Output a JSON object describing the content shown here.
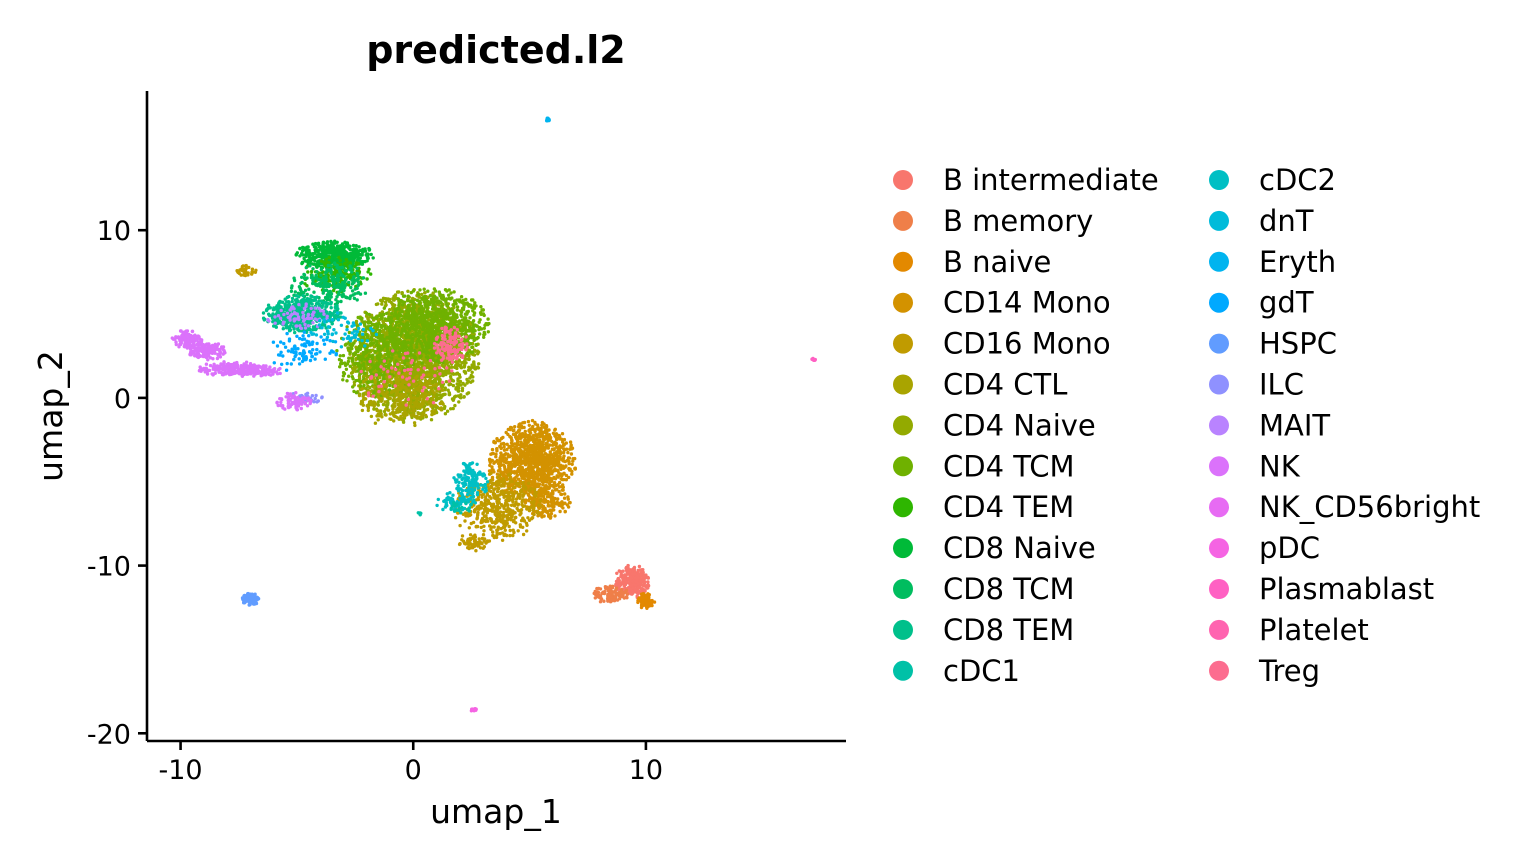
{
  "chart_data": {
    "type": "scatter",
    "title": "predicted.l2",
    "xlabel": "umap_1",
    "ylabel": "umap_2",
    "xlim": [
      -11.4,
      18.6
    ],
    "ylim": [
      -20.4,
      18.3
    ],
    "xticks": [
      -10,
      0,
      10
    ],
    "yticks": [
      -20,
      -10,
      0,
      10
    ],
    "xtick_labels": [
      "-10",
      "0",
      "10"
    ],
    "ytick_labels": [
      "-20",
      "-10",
      "0",
      "10"
    ],
    "grid": false,
    "legend_position": "right",
    "legend_columns": 2,
    "series": [
      {
        "name": "B intermediate",
        "color": "#F8766D"
      },
      {
        "name": "B memory",
        "color": "#EF7F49"
      },
      {
        "name": "B naive",
        "color": "#E38900"
      },
      {
        "name": "CD14 Mono",
        "color": "#D39200"
      },
      {
        "name": "CD16 Mono",
        "color": "#C09B00"
      },
      {
        "name": "CD4 CTL",
        "color": "#A9A400"
      },
      {
        "name": "CD4 Naive",
        "color": "#93AA00"
      },
      {
        "name": "CD4 TCM",
        "color": "#6FB100"
      },
      {
        "name": "CD4 TEM",
        "color": "#2EB600"
      },
      {
        "name": "CD8 Naive",
        "color": "#00BA38"
      },
      {
        "name": "CD8 TCM",
        "color": "#00BD5F"
      },
      {
        "name": "CD8 TEM",
        "color": "#00C08B"
      },
      {
        "name": "cDC1",
        "color": "#00C1A7"
      },
      {
        "name": "cDC2",
        "color": "#00BFC4"
      },
      {
        "name": "dnT",
        "color": "#00BBDA"
      },
      {
        "name": "Eryth",
        "color": "#00B4EF"
      },
      {
        "name": "gdT",
        "color": "#00A9FF"
      },
      {
        "name": "HSPC",
        "color": "#619CFF"
      },
      {
        "name": "ILC",
        "color": "#8F91FF"
      },
      {
        "name": "MAIT",
        "color": "#B983FF"
      },
      {
        "name": "NK",
        "color": "#DB72FB"
      },
      {
        "name": "NK_CD56bright",
        "color": "#E76BF3"
      },
      {
        "name": "pDC",
        "color": "#F564E3"
      },
      {
        "name": "Plasmablast",
        "color": "#FF61C3"
      },
      {
        "name": "Platelet",
        "color": "#FF64B0"
      },
      {
        "name": "Treg",
        "color": "#FC6D8F"
      }
    ],
    "clusters": [
      {
        "series": "CD4 Naive",
        "cx": 0.0,
        "cy": 2.5,
        "sx": 1.5,
        "sy": 2.1,
        "n": 2200
      },
      {
        "series": "CD4 TCM",
        "cx": 0.8,
        "cy": 4.3,
        "sx": 1.3,
        "sy": 1.2,
        "n": 900
      },
      {
        "series": "CD4 TCM",
        "cx": -1.6,
        "cy": 2.5,
        "sx": 0.9,
        "sy": 1.4,
        "n": 400
      },
      {
        "series": "CD4 CTL",
        "cx": -0.5,
        "cy": 0.0,
        "sx": 1.0,
        "sy": 1.0,
        "n": 350
      },
      {
        "series": "Treg",
        "cx": 1.6,
        "cy": 3.2,
        "sx": 0.4,
        "sy": 0.6,
        "n": 120
      },
      {
        "series": "Treg",
        "cx": -0.2,
        "cy": 1.2,
        "sx": 1.2,
        "sy": 1.0,
        "n": 60
      },
      {
        "series": "CD8 Naive",
        "cx": -3.4,
        "cy": 8.5,
        "sx": 0.9,
        "sy": 0.45,
        "n": 450
      },
      {
        "series": "CD4 TEM",
        "cx": -3.3,
        "cy": 7.3,
        "sx": 0.8,
        "sy": 0.6,
        "n": 180
      },
      {
        "series": "CD8 TCM",
        "cx": -3.6,
        "cy": 6.7,
        "sx": 0.9,
        "sy": 0.8,
        "n": 220
      },
      {
        "series": "CD8 TEM",
        "cx": -4.8,
        "cy": 5.0,
        "sx": 0.9,
        "sy": 0.6,
        "n": 500
      },
      {
        "series": "MAIT",
        "cx": -5.0,
        "cy": 4.7,
        "sx": 0.7,
        "sy": 0.5,
        "n": 70
      },
      {
        "series": "gdT",
        "cx": -4.7,
        "cy": 2.8,
        "sx": 0.8,
        "sy": 0.7,
        "n": 90
      },
      {
        "series": "dnT",
        "cx": -3.0,
        "cy": 4.0,
        "sx": 0.8,
        "sy": 0.6,
        "n": 60
      },
      {
        "series": "ILC",
        "cx": -4.6,
        "cy": 0.0,
        "sx": 0.4,
        "sy": 0.2,
        "n": 40
      },
      {
        "series": "NK",
        "cx": -5.1,
        "cy": -0.2,
        "sx": 0.45,
        "sy": 0.3,
        "n": 70
      },
      {
        "series": "NK",
        "cx": -9.7,
        "cy": 3.5,
        "sx": 0.35,
        "sy": 0.3,
        "n": 120
      },
      {
        "series": "NK",
        "cx": -8.9,
        "cy": 2.8,
        "sx": 0.45,
        "sy": 0.3,
        "n": 140
      },
      {
        "series": "NK",
        "cx": -7.8,
        "cy": 1.7,
        "sx": 0.8,
        "sy": 0.25,
        "n": 220
      },
      {
        "series": "NK",
        "cx": -6.4,
        "cy": 1.6,
        "sx": 0.4,
        "sy": 0.2,
        "n": 80
      },
      {
        "series": "CD16 Mono",
        "cx": -7.2,
        "cy": 7.6,
        "sx": 0.25,
        "sy": 0.2,
        "n": 40
      },
      {
        "series": "CD14 Mono",
        "cx": 5.1,
        "cy": -3.8,
        "sx": 1.0,
        "sy": 1.3,
        "n": 1100
      },
      {
        "series": "CD14 Mono",
        "cx": 5.8,
        "cy": -6.3,
        "sx": 0.5,
        "sy": 0.5,
        "n": 150
      },
      {
        "series": "CD16 Mono",
        "cx": 3.6,
        "cy": -6.5,
        "sx": 1.0,
        "sy": 1.1,
        "n": 450
      },
      {
        "series": "CD16 Mono",
        "cx": 2.6,
        "cy": -8.6,
        "sx": 0.35,
        "sy": 0.3,
        "n": 60
      },
      {
        "series": "cDC2",
        "cx": 2.5,
        "cy": -4.9,
        "sx": 0.4,
        "sy": 0.6,
        "n": 130
      },
      {
        "series": "cDC2",
        "cx": 1.8,
        "cy": -6.2,
        "sx": 0.5,
        "sy": 0.3,
        "n": 70
      },
      {
        "series": "cDC1",
        "cx": 2.0,
        "cy": -6.5,
        "sx": 0.3,
        "sy": 0.2,
        "n": 20
      },
      {
        "series": "B intermediate",
        "cx": 9.4,
        "cy": -11.0,
        "sx": 0.4,
        "sy": 0.55,
        "n": 300
      },
      {
        "series": "B memory",
        "cx": 8.5,
        "cy": -11.7,
        "sx": 0.4,
        "sy": 0.3,
        "n": 130
      },
      {
        "series": "B naive",
        "cx": 10.0,
        "cy": -12.1,
        "sx": 0.2,
        "sy": 0.25,
        "n": 70
      },
      {
        "series": "HSPC",
        "cx": -7.0,
        "cy": -12.0,
        "sx": 0.2,
        "sy": 0.2,
        "n": 90
      },
      {
        "series": "Eryth",
        "cx": 5.8,
        "cy": 16.6,
        "sx": 0.05,
        "sy": 0.05,
        "n": 10
      },
      {
        "series": "pDC",
        "cx": 2.6,
        "cy": -18.6,
        "sx": 0.1,
        "sy": 0.05,
        "n": 12
      },
      {
        "series": "Plasmablast",
        "cx": 17.2,
        "cy": 2.3,
        "sx": 0.05,
        "sy": 0.05,
        "n": 8
      },
      {
        "series": "cDC1",
        "cx": 0.3,
        "cy": -6.9,
        "sx": 0.05,
        "sy": 0.05,
        "n": 5
      }
    ]
  }
}
